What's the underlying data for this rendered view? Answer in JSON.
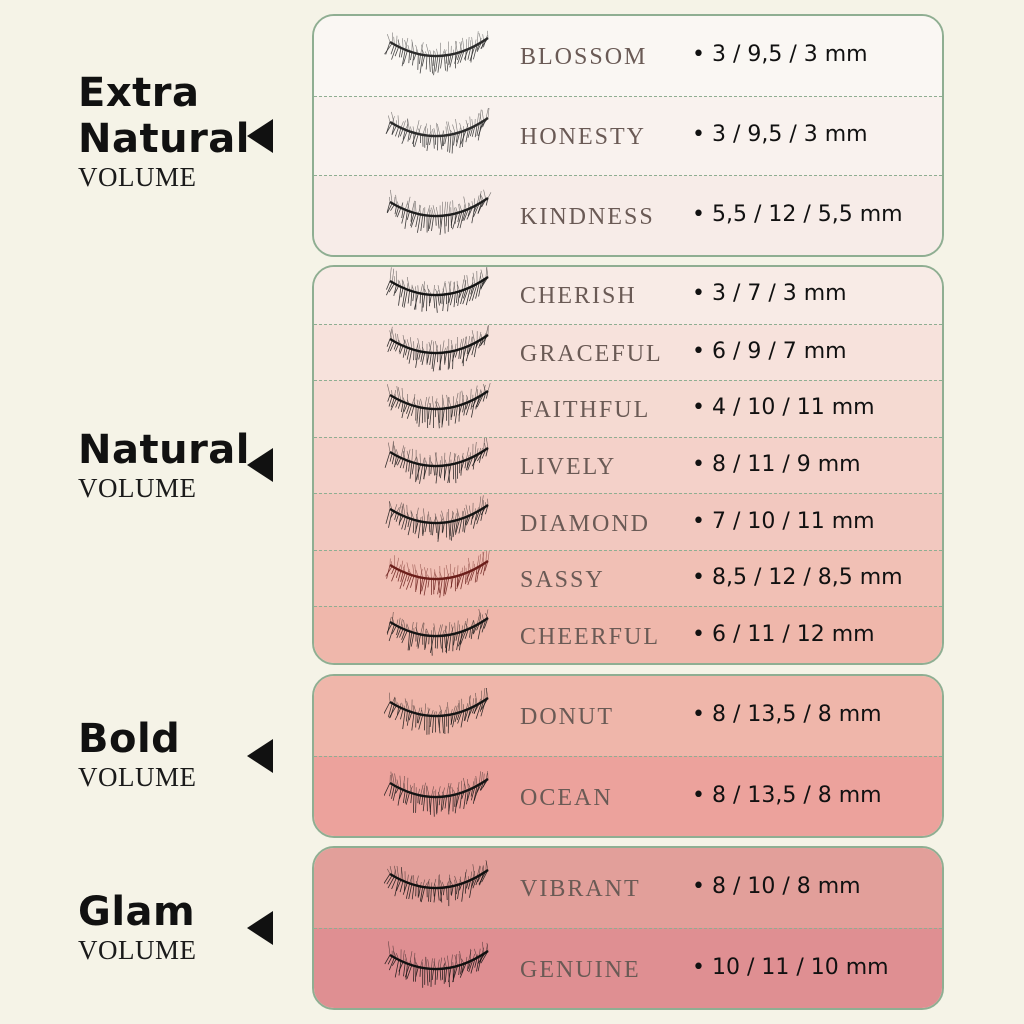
{
  "groups": [
    {
      "title": "Extra Natural",
      "subtitle": "VOLUME",
      "colors": [
        "#faf7f3",
        "#f7ece8"
      ],
      "items": [
        {
          "name": "BLOSSOM",
          "spec": "• 3 / 9,5 / 3 mm",
          "lash_color": "#2a2a2a"
        },
        {
          "name": "HONESTY",
          "spec": "• 3 / 9,5 / 3 mm",
          "lash_color": "#2a2a2a"
        },
        {
          "name": "KINDNESS",
          "spec": "• 5,5 / 12 / 5,5 mm",
          "lash_color": "#1e1e1e"
        }
      ]
    },
    {
      "title": "Natural",
      "subtitle": "VOLUME",
      "colors": [
        "#f8ebe6",
        "#efb7ab"
      ],
      "items": [
        {
          "name": "CHERISH",
          "spec": "• 3 / 7 / 3 mm",
          "lash_color": "#151515"
        },
        {
          "name": "GRACEFUL",
          "spec": "• 6 / 9 / 7 mm",
          "lash_color": "#151515"
        },
        {
          "name": "FAITHFUL",
          "spec": "• 4 / 10 / 11 mm",
          "lash_color": "#151515"
        },
        {
          "name": "LIVELY",
          "spec": "• 8 / 11 / 9 mm",
          "lash_color": "#151515"
        },
        {
          "name": "DIAMOND",
          "spec": "• 7 / 10 / 11 mm",
          "lash_color": "#151515"
        },
        {
          "name": "SASSY",
          "spec": "• 8,5 / 12 / 8,5 mm",
          "lash_color": "#6b1e1a"
        },
        {
          "name": "CHEERFUL",
          "spec": "• 6 / 11 / 12 mm",
          "lash_color": "#151515"
        }
      ]
    },
    {
      "title": "Bold",
      "subtitle": "VOLUME",
      "colors": [
        "#efb6aa",
        "#eca29c"
      ],
      "items": [
        {
          "name": "DONUT",
          "spec": "• 8 / 13,5 / 8 mm",
          "lash_color": "#151515"
        },
        {
          "name": "OCEAN",
          "spec": "• 8 / 13,5 / 8 mm",
          "lash_color": "#151515"
        }
      ]
    },
    {
      "title": "Glam",
      "subtitle": "VOLUME",
      "colors": [
        "#e29f9a",
        "#df8f92"
      ],
      "items": [
        {
          "name": "VIBRANT",
          "spec": "• 8 / 10 / 8 mm",
          "lash_color": "#111111"
        },
        {
          "name": "GENUINE",
          "spec": "• 10 / 11 / 10 mm",
          "lash_color": "#111111"
        }
      ]
    }
  ]
}
